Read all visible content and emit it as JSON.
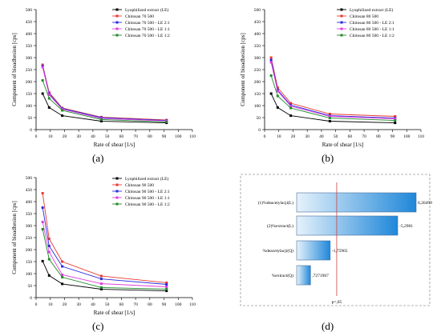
{
  "chart_data": [
    {
      "type": "line",
      "panel": "(a)",
      "xlabel": "Rate of shear [1/s]",
      "ylabel": "Component of bioadhesion [cps]",
      "xlim": [
        0,
        110
      ],
      "ylim": [
        0,
        500
      ],
      "xticks": [
        0,
        10,
        20,
        30,
        40,
        50,
        60,
        70,
        80,
        90,
        100,
        110
      ],
      "yticks": [
        0,
        50,
        100,
        150,
        200,
        250,
        300,
        350,
        400,
        450,
        500
      ],
      "legend_position": "top-right",
      "x": [
        4.6,
        9.2,
        18.4,
        45.9,
        91.8
      ],
      "series": [
        {
          "name": "Lyophilized extract (LE)",
          "color": "#000000",
          "values": [
            150,
            92,
            58,
            35,
            28
          ]
        },
        {
          "name": "Chitosan 70 500",
          "color": "#e8392f",
          "values": [
            270,
            155,
            90,
            52,
            40
          ]
        },
        {
          "name": "Chitosan 70 500 - LE 2:1",
          "color": "#2a2ae0",
          "values": [
            265,
            150,
            88,
            50,
            38
          ]
        },
        {
          "name": "Chitosan 70 500 - LE 1:1",
          "color": "#e040e0",
          "values": [
            260,
            145,
            85,
            46,
            36
          ]
        },
        {
          "name": "Chitosan 70 500 - LE 1:2",
          "color": "#1f8a2a",
          "values": [
            205,
            130,
            80,
            42,
            32
          ]
        }
      ]
    },
    {
      "type": "line",
      "panel": "(b)",
      "xlabel": "Rate of shear [1/s]",
      "ylabel": "Component of bioadhesion [cps]",
      "xlim": [
        0,
        110
      ],
      "ylim": [
        0,
        500
      ],
      "xticks": [
        0,
        10,
        20,
        30,
        40,
        50,
        60,
        70,
        80,
        90,
        100,
        110
      ],
      "yticks": [
        0,
        50,
        100,
        150,
        200,
        250,
        300,
        350,
        400,
        450,
        500
      ],
      "legend_position": "top-right",
      "x": [
        4.6,
        9.2,
        18.4,
        45.9,
        91.8
      ],
      "series": [
        {
          "name": "Lyophilized extract (LE)",
          "color": "#000000",
          "values": [
            150,
            92,
            58,
            35,
            28
          ]
        },
        {
          "name": "Chitosan 80 500",
          "color": "#e8392f",
          "values": [
            300,
            175,
            110,
            65,
            55
          ]
        },
        {
          "name": "Chitosan 80 500 - LE 2:1",
          "color": "#2a2ae0",
          "values": [
            290,
            165,
            102,
            58,
            48
          ]
        },
        {
          "name": "Chitosan 80 500 - LE 1:1",
          "color": "#e040e0",
          "values": [
            280,
            160,
            98,
            55,
            45
          ]
        },
        {
          "name": "Chitosan 80 500 - LE 1:2",
          "color": "#1f8a2a",
          "values": [
            225,
            140,
            90,
            48,
            38
          ]
        }
      ]
    },
    {
      "type": "line",
      "panel": "(c)",
      "xlabel": "Rate of shear [1/s]",
      "ylabel": "Component of bioadhesion [cps]",
      "xlim": [
        0,
        110
      ],
      "ylim": [
        0,
        500
      ],
      "xticks": [
        0,
        10,
        20,
        30,
        40,
        50,
        60,
        70,
        80,
        90,
        100,
        110
      ],
      "yticks": [
        0,
        50,
        100,
        150,
        200,
        250,
        300,
        350,
        400,
        450,
        500
      ],
      "legend_position": "top-right",
      "x": [
        4.6,
        9.2,
        18.4,
        45.9,
        91.8
      ],
      "series": [
        {
          "name": "Lyophilized extract (LE)",
          "color": "#000000",
          "values": [
            152,
            92,
            57,
            35,
            28
          ]
        },
        {
          "name": "Chitosan 90 500",
          "color": "#e8392f",
          "values": [
            435,
            245,
            150,
            90,
            62
          ]
        },
        {
          "name": "Chitosan 90 500 - LE 2:1",
          "color": "#2a2ae0",
          "values": [
            375,
            215,
            130,
            78,
            55
          ]
        },
        {
          "name": "Chitosan 90 500 - LE 1:1",
          "color": "#e040e0",
          "values": [
            315,
            190,
            95,
            58,
            45
          ]
        },
        {
          "name": "Chitosan 90 500 - LE 1:2",
          "color": "#1f8a2a",
          "values": [
            285,
            160,
            85,
            42,
            35
          ]
        }
      ]
    },
    {
      "type": "bar",
      "panel": "(d)",
      "orientation": "horizontal",
      "categories": [
        "(1)%deacetylacji(L)",
        "(2)%extract(L)",
        "%deacetylacji(Q)",
        "%extract(Q)"
      ],
      "values": [
        6.264986,
        -5.2981,
        -1.75965,
        0.7271967
      ],
      "value_labels": [
        "6,26499",
        "-5,2981",
        "-1,75965",
        ",7271967"
      ],
      "significance_label": "p=,05",
      "significance_value": 2.1
    }
  ],
  "captions": [
    "(a)",
    "(b)",
    "(c)",
    "(d)"
  ],
  "style": {
    "marker_size": 3,
    "axis_color": "#000000",
    "bar_light": "#e6f2fb",
    "bar_dark": "#1f87d9",
    "bar_border": "#4a6fa0",
    "sig_line_color": "#d04040",
    "dash_border": "#9a9a9a"
  }
}
